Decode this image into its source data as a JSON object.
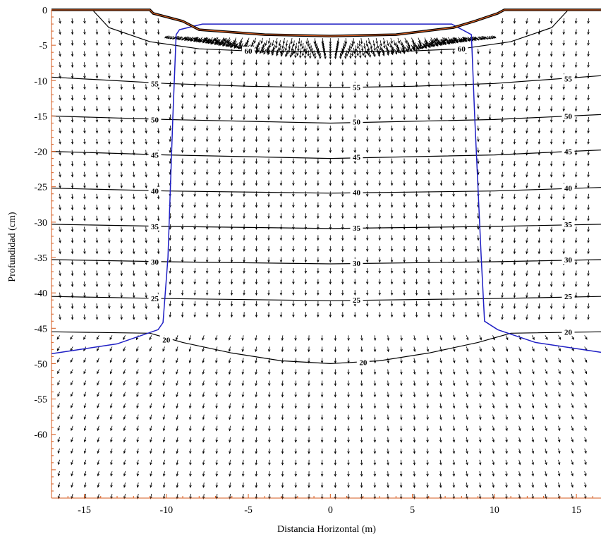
{
  "chart_data": {
    "type": "contour",
    "xlabel": "Distancia Horizontal (m)",
    "ylabel": "Profundidad (cm)",
    "xlim": [
      -17,
      16.5
    ],
    "ylim": [
      -69,
      0
    ],
    "x_ticks": [
      -15,
      -10,
      -5,
      0,
      5,
      10,
      15
    ],
    "x_tick_labels": [
      "-15",
      "-10",
      "-5",
      "0",
      "5",
      "10",
      "15"
    ],
    "y_ticks": [
      0,
      -5,
      -10,
      -15,
      -20,
      -25,
      -30,
      -35,
      -40,
      -45,
      -50,
      -55,
      -60
    ],
    "y_tick_labels": [
      "0",
      "-5",
      "-10",
      "-15",
      "-20",
      "-25",
      "-30",
      "-35",
      "-40",
      "-45",
      "-50",
      "-55",
      "-60"
    ],
    "contours": [
      {
        "level": 60,
        "label": "60",
        "points": [
          [
            -14.5,
            0
          ],
          [
            -13.5,
            -2.5
          ],
          [
            -11,
            -4.5
          ],
          [
            -8,
            -5.5
          ],
          [
            -5,
            -5.8
          ],
          [
            0,
            -5.9
          ],
          [
            5,
            -5.8
          ],
          [
            8,
            -5.5
          ],
          [
            11,
            -4.5
          ],
          [
            13.5,
            -2.5
          ],
          [
            14.5,
            0
          ]
        ],
        "label_positions": [
          [
            -5,
            -5.8
          ],
          [
            8,
            -5.5
          ]
        ]
      },
      {
        "level": 55,
        "label": "55",
        "points": [
          [
            -17,
            -9.5
          ],
          [
            -10,
            -10.4
          ],
          [
            -5,
            -10.8
          ],
          [
            0,
            -11
          ],
          [
            5,
            -10.8
          ],
          [
            10,
            -10.4
          ],
          [
            16.5,
            -9.3
          ]
        ],
        "label_positions": [
          [
            -10.7,
            -10.4
          ],
          [
            1.6,
            -10.9
          ],
          [
            14.5,
            -9.7
          ]
        ]
      },
      {
        "level": 50,
        "label": "50",
        "points": [
          [
            -17,
            -15
          ],
          [
            -10,
            -15.5
          ],
          [
            0,
            -16
          ],
          [
            10,
            -15.5
          ],
          [
            16.5,
            -14.8
          ]
        ],
        "label_positions": [
          [
            -10.7,
            -15.5
          ],
          [
            1.6,
            -15.8
          ],
          [
            14.5,
            -15
          ]
        ]
      },
      {
        "level": 45,
        "label": "45",
        "points": [
          [
            -17,
            -20
          ],
          [
            -10,
            -20.5
          ],
          [
            0,
            -21
          ],
          [
            10,
            -20.5
          ],
          [
            16.5,
            -19.8
          ]
        ],
        "label_positions": [
          [
            -10.7,
            -20.5
          ],
          [
            1.6,
            -20.8
          ],
          [
            14.5,
            -20
          ]
        ]
      },
      {
        "level": 40,
        "label": "40",
        "points": [
          [
            -17,
            -25.2
          ],
          [
            -10,
            -25.6
          ],
          [
            0,
            -25.9
          ],
          [
            10,
            -25.6
          ],
          [
            16.5,
            -25.1
          ]
        ],
        "label_positions": [
          [
            -10.7,
            -25.6
          ],
          [
            1.6,
            -25.8
          ],
          [
            14.5,
            -25.2
          ]
        ]
      },
      {
        "level": 35,
        "label": "35",
        "points": [
          [
            -17,
            -30.3
          ],
          [
            -10,
            -30.6
          ],
          [
            0,
            -30.9
          ],
          [
            10,
            -30.6
          ],
          [
            16.5,
            -30.3
          ]
        ],
        "label_positions": [
          [
            -10.7,
            -30.6
          ],
          [
            1.6,
            -30.8
          ],
          [
            14.5,
            -30.3
          ]
        ]
      },
      {
        "level": 30,
        "label": "30",
        "points": [
          [
            -17,
            -35.3
          ],
          [
            -10,
            -35.6
          ],
          [
            0,
            -35.9
          ],
          [
            10,
            -35.6
          ],
          [
            16.5,
            -35.3
          ]
        ],
        "label_positions": [
          [
            -10.7,
            -35.6
          ],
          [
            1.6,
            -35.8
          ],
          [
            14.5,
            -35.3
          ]
        ]
      },
      {
        "level": 25,
        "label": "25",
        "points": [
          [
            -17,
            -40.5
          ],
          [
            -10,
            -40.8
          ],
          [
            0,
            -41.1
          ],
          [
            10,
            -40.8
          ],
          [
            16.5,
            -40.5
          ]
        ],
        "label_positions": [
          [
            -10.7,
            -40.8
          ],
          [
            1.6,
            -41
          ],
          [
            14.5,
            -40.5
          ]
        ]
      },
      {
        "level": 20,
        "label": "20",
        "points": [
          [
            -17,
            -45.5
          ],
          [
            -11,
            -45.7
          ],
          [
            -9,
            -47
          ],
          [
            -6,
            -48.5
          ],
          [
            -3,
            -49.6
          ],
          [
            0,
            -50
          ],
          [
            3,
            -49.6
          ],
          [
            6,
            -48.5
          ],
          [
            9,
            -47
          ],
          [
            11,
            -45.7
          ],
          [
            16.5,
            -45.5
          ]
        ],
        "label_positions": [
          [
            -10,
            -46.6
          ],
          [
            2,
            -49.8
          ],
          [
            14.5,
            -45.5
          ]
        ]
      }
    ],
    "wetting_front": {
      "color": "#1f1fc4",
      "left": [
        [
          -17,
          -48.6
        ],
        [
          -13,
          -47.2
        ],
        [
          -10.5,
          -45.2
        ],
        [
          -10.2,
          -44.2
        ],
        [
          -9.9,
          -35
        ],
        [
          -9.6,
          -15
        ],
        [
          -9.4,
          -3.5
        ],
        [
          -9.2,
          -2.8
        ],
        [
          -7.8,
          -2
        ],
        [
          7.4,
          -2
        ],
        [
          8.6,
          -3.5
        ],
        [
          8.8,
          -15
        ],
        [
          9.2,
          -35
        ],
        [
          9.4,
          -44
        ],
        [
          10.2,
          -45.2
        ],
        [
          12.5,
          -47
        ],
        [
          16.5,
          -48.4
        ]
      ]
    },
    "furrow_surface": {
      "color": "#000000",
      "points": [
        [
          -17,
          0
        ],
        [
          -11,
          0
        ],
        [
          -10.8,
          -0.5
        ],
        [
          -9,
          -1.6
        ],
        [
          -8,
          -2.8
        ],
        [
          -4,
          -3.5
        ],
        [
          0,
          -3.7
        ],
        [
          4,
          -3.5
        ],
        [
          7.5,
          -2.5
        ],
        [
          8.8,
          -1.6
        ],
        [
          10.2,
          -0.5
        ],
        [
          10.6,
          0
        ],
        [
          16.5,
          0
        ]
      ]
    },
    "surface_line_color": "#d45a1e",
    "vector_field": {
      "description_level": "flux vectors pointing downward",
      "color": "#000000"
    },
    "grid": false,
    "legend": "none"
  }
}
